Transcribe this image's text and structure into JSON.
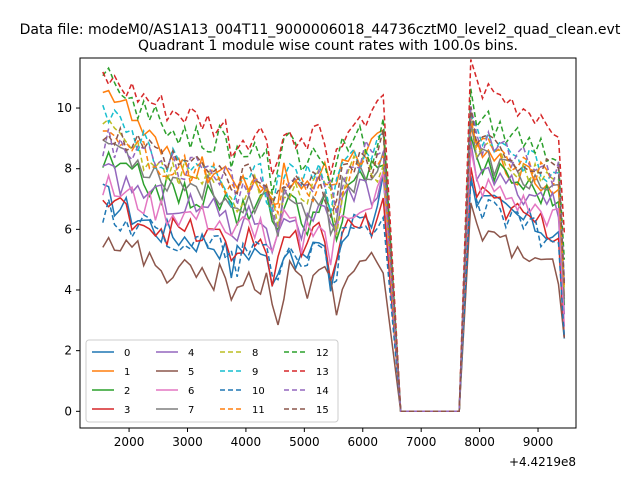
{
  "figure": {
    "suptitle": "Data file: modeM0/AS1A13_004T11_9000006018_44736cztM0_level2_quad_clean.evt",
    "title": "Quadrant 1 module wise count rates with 100.0s bins.",
    "x_offset_label": "+4.4219e8"
  },
  "chart_data": {
    "type": "line",
    "title": "Quadrant 1 module wise count rates with 100.0s bins.",
    "xlabel": "",
    "ylabel": "",
    "x_offset": 442190000,
    "xlim": [
      1160,
      9650
    ],
    "ylim": [
      -0.55,
      11.65
    ],
    "x_ticks": [
      2000,
      3000,
      4000,
      5000,
      6000,
      7000,
      8000,
      9000
    ],
    "y_ticks": [
      0,
      2,
      4,
      6,
      8,
      10
    ],
    "x_tick_labels": [
      "2000",
      "3000",
      "4000",
      "5000",
      "6000",
      "7000",
      "8000",
      "9000"
    ],
    "y_tick_labels": [
      "0",
      "2",
      "4",
      "6",
      "8",
      "10"
    ],
    "grid": false,
    "legend": {
      "position": "lower-left",
      "columns": 4
    },
    "segments": [
      {
        "start": 1550,
        "end": 6350
      },
      {
        "start": 6350,
        "end": 6650
      },
      {
        "start": 6650,
        "end": 7650
      },
      {
        "start": 7650,
        "end": 7850
      },
      {
        "start": 7850,
        "end": 9450
      }
    ],
    "series": [
      {
        "name": "0",
        "color": "#1f77b4",
        "dash": "solid",
        "pattern": "A",
        "levels": [
          7.1,
          5.9,
          5.3,
          5.5,
          7.6,
          5.8
        ]
      },
      {
        "name": "1",
        "color": "#ff7f0e",
        "dash": "solid",
        "pattern": "B",
        "levels": [
          10.9,
          8.3,
          7.6,
          7.9,
          9.4,
          7.3
        ]
      },
      {
        "name": "2",
        "color": "#2ca02c",
        "dash": "solid",
        "pattern": "C",
        "levels": [
          8.2,
          7.3,
          6.8,
          6.9,
          8.8,
          7.0
        ]
      },
      {
        "name": "3",
        "color": "#d62728",
        "dash": "solid",
        "pattern": "D",
        "levels": [
          6.9,
          6.0,
          5.6,
          5.8,
          6.8,
          5.9
        ]
      },
      {
        "name": "4",
        "color": "#9467bd",
        "dash": "solid",
        "pattern": "E",
        "levels": [
          7.8,
          7.0,
          6.4,
          6.6,
          8.0,
          6.7
        ]
      },
      {
        "name": "5",
        "color": "#8c564b",
        "dash": "solid",
        "pattern": "F",
        "levels": [
          5.9,
          4.7,
          4.3,
          4.7,
          5.2,
          4.6
        ]
      },
      {
        "name": "6",
        "color": "#e377c2",
        "dash": "solid",
        "pattern": "A",
        "levels": [
          7.4,
          6.6,
          6.1,
          6.3,
          7.6,
          6.3
        ]
      },
      {
        "name": "7",
        "color": "#7f7f7f",
        "dash": "solid",
        "pattern": "B",
        "levels": [
          9.0,
          7.7,
          7.0,
          7.2,
          8.6,
          7.2
        ]
      },
      {
        "name": "8",
        "color": "#bcbd22",
        "dash": "dashed",
        "pattern": "C",
        "levels": [
          9.3,
          8.0,
          7.3,
          7.6,
          8.7,
          7.5
        ]
      },
      {
        "name": "9",
        "color": "#17becf",
        "dash": "dashed",
        "pattern": "D",
        "levels": [
          9.7,
          8.3,
          7.7,
          8.0,
          8.9,
          7.8
        ]
      },
      {
        "name": "10",
        "color": "#1f77b4",
        "dash": "dashed",
        "pattern": "E",
        "levels": [
          6.6,
          5.8,
          5.3,
          5.5,
          6.4,
          5.6
        ]
      },
      {
        "name": "11",
        "color": "#ff7f0e",
        "dash": "dashed",
        "pattern": "F",
        "levels": [
          9.4,
          8.1,
          7.5,
          7.7,
          9.0,
          7.6
        ]
      },
      {
        "name": "12",
        "color": "#2ca02c",
        "dash": "dashed",
        "pattern": "A",
        "levels": [
          11.0,
          9.4,
          8.7,
          8.8,
          9.3,
          8.5
        ]
      },
      {
        "name": "13",
        "color": "#d62728",
        "dash": "dashed",
        "pattern": "B",
        "levels": [
          10.9,
          9.9,
          9.0,
          9.1,
          10.4,
          9.4
        ]
      },
      {
        "name": "14",
        "color": "#9467bd",
        "dash": "dashed",
        "pattern": "C",
        "levels": [
          8.9,
          8.3,
          7.6,
          7.8,
          9.1,
          7.8
        ]
      },
      {
        "name": "15",
        "color": "#8c564b",
        "dash": "dashed",
        "pattern": "D",
        "levels": [
          9.2,
          8.2,
          7.7,
          7.8,
          8.9,
          7.7
        ]
      }
    ]
  }
}
